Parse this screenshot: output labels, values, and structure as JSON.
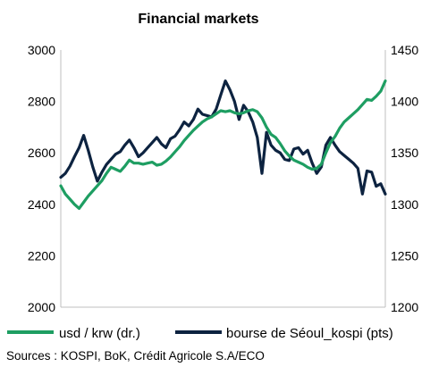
{
  "chart_data": {
    "type": "line",
    "title": "Financial markets",
    "source": "Sources : KOSPI, BoK, Crédit Agricole S.A/ECO",
    "left_axis": {
      "ticks": [
        "3000",
        "2800",
        "2600",
        "2400",
        "2200",
        "2000"
      ],
      "ylim": [
        2000,
        3000
      ]
    },
    "right_axis": {
      "ticks": [
        "1450",
        "1400",
        "1350",
        "1300",
        "1250",
        "1200"
      ],
      "ylim": [
        1200,
        1450
      ]
    },
    "grid": false,
    "legend_position": "bottom",
    "series": [
      {
        "name": "usd / krw (dr.)",
        "axis": "right",
        "color": "#1e9e62",
        "values": [
          1318,
          1310,
          1305,
          1300,
          1296,
          1302,
          1308,
          1313,
          1318,
          1323,
          1330,
          1336,
          1334,
          1332,
          1337,
          1343,
          1340,
          1340,
          1339,
          1340,
          1341,
          1338,
          1339,
          1342,
          1346,
          1351,
          1356,
          1362,
          1367,
          1372,
          1376,
          1380,
          1383,
          1385,
          1388,
          1391,
          1390,
          1391,
          1389,
          1388,
          1389,
          1391,
          1392,
          1390,
          1384,
          1375,
          1368,
          1365,
          1359,
          1352,
          1347,
          1343,
          1341,
          1339,
          1336,
          1334,
          1335,
          1339,
          1350,
          1360,
          1366,
          1374,
          1380,
          1384,
          1388,
          1392,
          1397,
          1402,
          1401,
          1405,
          1410,
          1420
        ]
      },
      {
        "name": "bourse de Séoul_kospi (pts)",
        "axis": "left",
        "color": "#0d2340",
        "values": [
          2505,
          2520,
          2548,
          2585,
          2620,
          2668,
          2610,
          2545,
          2490,
          2525,
          2555,
          2575,
          2595,
          2605,
          2630,
          2650,
          2620,
          2585,
          2600,
          2620,
          2640,
          2660,
          2635,
          2620,
          2655,
          2665,
          2690,
          2720,
          2705,
          2730,
          2770,
          2750,
          2745,
          2740,
          2770,
          2825,
          2880,
          2845,
          2800,
          2730,
          2785,
          2760,
          2720,
          2660,
          2520,
          2680,
          2630,
          2610,
          2600,
          2575,
          2570,
          2615,
          2620,
          2595,
          2610,
          2560,
          2520,
          2545,
          2630,
          2660,
          2630,
          2605,
          2590,
          2575,
          2560,
          2540,
          2440,
          2530,
          2525,
          2470,
          2480,
          2440
        ]
      }
    ]
  }
}
